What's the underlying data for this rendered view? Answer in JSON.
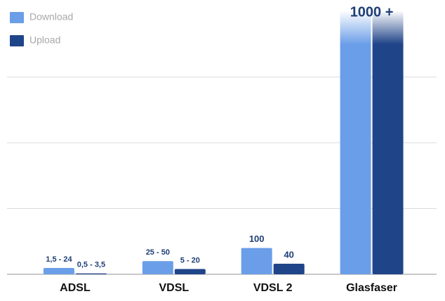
{
  "chart_data": {
    "type": "bar",
    "categories": [
      "ADSL",
      "VDSL",
      "VDSL 2",
      "Glasfaser"
    ],
    "series": [
      {
        "name": "Download",
        "color": "#6b9ee8",
        "values": [
          24,
          50,
          100,
          1000
        ],
        "value_labels": [
          "1,5 - 24",
          "25 - 50",
          "100",
          "1000 +"
        ]
      },
      {
        "name": "Upload",
        "color": "#1f4488",
        "values": [
          3.5,
          20,
          40,
          1000
        ],
        "value_labels": [
          "0,5 - 3,5",
          "5 - 20",
          "40",
          "1000 +"
        ]
      }
    ],
    "ylim": [
      0,
      1000
    ],
    "yticks": [
      250,
      500,
      750
    ],
    "grid": true,
    "legend": "top-left"
  }
}
